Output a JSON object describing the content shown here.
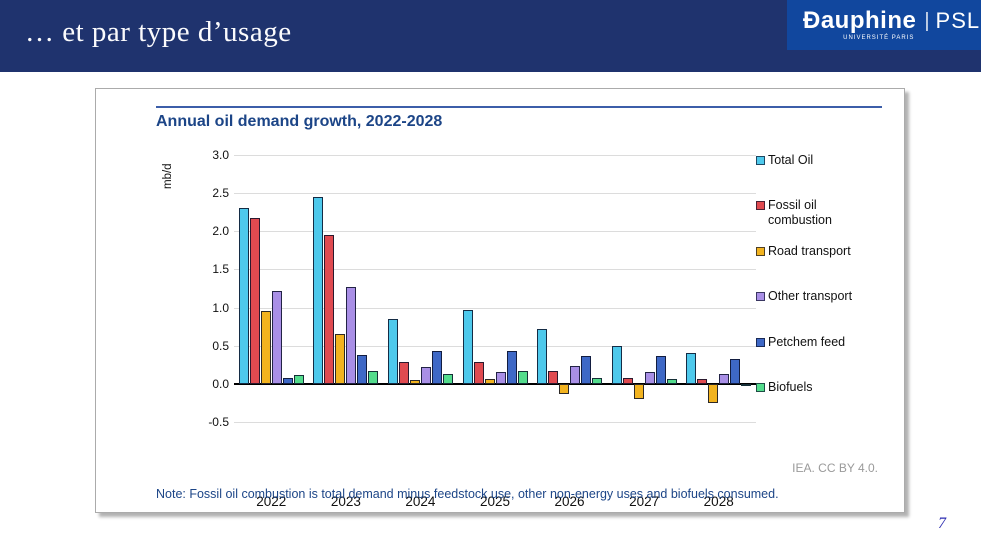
{
  "header": {
    "title": "… et par type d’usage",
    "logo": {
      "brand": "Ðauphine",
      "subtitle": "UNIVERSITÉ PARIS",
      "separator": "|",
      "suffix": "PSL",
      "star_glyph": "✪"
    }
  },
  "chart_card": {
    "attribution": "IEA. CC BY 4.0.",
    "note": "Note: Fossil oil combustion is total demand minus feedstock use, other non-energy uses and biofuels consumed."
  },
  "chart_data": {
    "type": "bar",
    "title": "Annual oil demand growth, 2022-2028",
    "ylabel": "mb/d",
    "xlabel": "",
    "categories": [
      "2022",
      "2023",
      "2024",
      "2025",
      "2026",
      "2027",
      "2028"
    ],
    "series": [
      {
        "name": "Total Oil",
        "color": "#4EC9EC",
        "values": [
          2.3,
          2.45,
          0.85,
          0.97,
          0.72,
          0.5,
          0.4
        ]
      },
      {
        "name": "Fossil oil combustion",
        "color": "#E04A50",
        "values": [
          2.18,
          1.95,
          0.28,
          0.29,
          0.17,
          0.08,
          0.06
        ]
      },
      {
        "name": "Road transport",
        "color": "#F2B31F",
        "values": [
          0.95,
          0.65,
          0.05,
          0.06,
          -0.13,
          -0.2,
          -0.25
        ]
      },
      {
        "name": "Other transport",
        "color": "#A98FE6",
        "values": [
          1.22,
          1.27,
          0.22,
          0.16,
          0.23,
          0.15,
          0.13
        ]
      },
      {
        "name": "Petchem feed",
        "color": "#3E68C6",
        "values": [
          0.08,
          0.38,
          0.43,
          0.43,
          0.36,
          0.36,
          0.33
        ]
      },
      {
        "name": "Biofuels",
        "color": "#53DC8C",
        "values": [
          0.12,
          0.17,
          0.13,
          0.17,
          0.08,
          0.06,
          -0.03
        ]
      }
    ],
    "ylim": [
      -0.5,
      3.0
    ],
    "yticks": [
      3.0,
      2.5,
      2.0,
      1.5,
      1.0,
      0.5,
      0.0,
      -0.5
    ],
    "grid": true,
    "legend_position": "right"
  },
  "footer": {
    "page_number": "7"
  },
  "colors": {
    "header_bg": "#1F336E",
    "logo_bg": "#11479E",
    "title_blue": "#1C4587",
    "rule_blue": "#3C5EA9",
    "attribution_gray": "#9A9A9A",
    "page_number_blue": "#2B2BB0"
  }
}
